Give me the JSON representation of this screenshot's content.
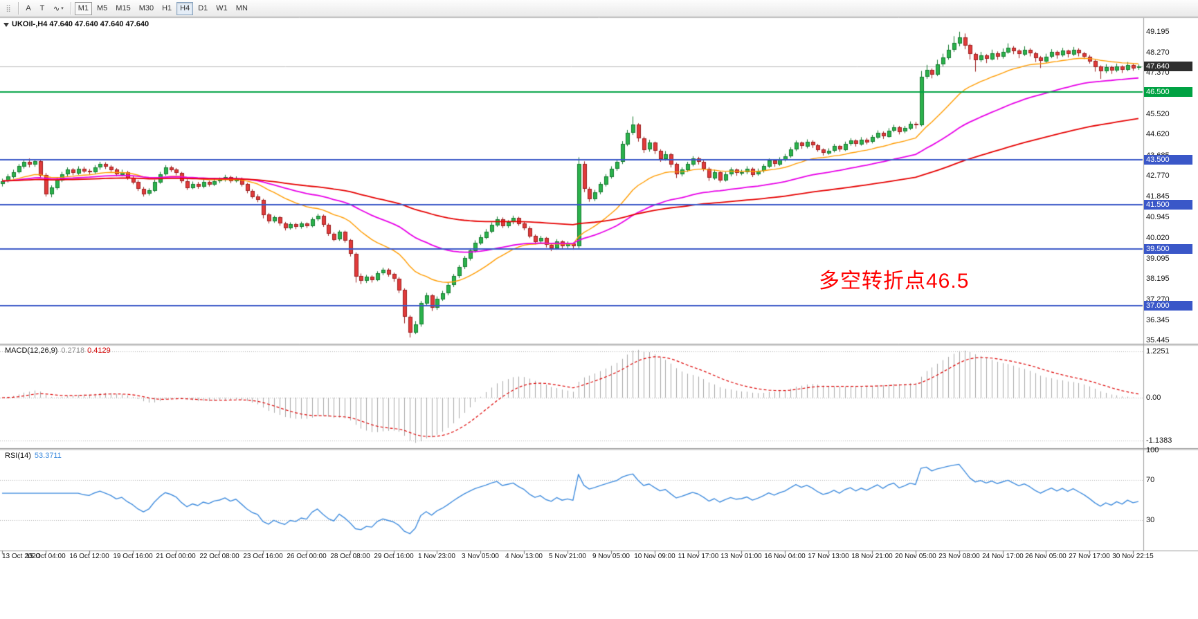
{
  "toolbar": {
    "tools": [
      {
        "name": "toolbar-grip-icon",
        "glyph": "⣿"
      },
      {
        "name": "cursor-tool-button",
        "glyph": "A"
      },
      {
        "name": "text-tool-button",
        "glyph": "T"
      },
      {
        "name": "line-studies-tool-button",
        "glyph": "∿",
        "caret": "▾"
      }
    ],
    "timeframes": [
      {
        "label": "M1",
        "style": "outlined"
      },
      {
        "label": "M5"
      },
      {
        "label": "M15"
      },
      {
        "label": "M30"
      },
      {
        "label": "H1"
      },
      {
        "label": "H4",
        "style": "active"
      },
      {
        "label": "D1"
      },
      {
        "label": "W1"
      },
      {
        "label": "MN"
      }
    ]
  },
  "chart": {
    "symbol_line": "UKOil-,H4 47.640 47.640 47.640 47.640",
    "annotation": {
      "text": "多空转折点46.5",
      "color": "#FF0000"
    },
    "current_price": {
      "label": "47.640",
      "value": 47.64,
      "badge_bg": "#2E2E2E"
    },
    "hlines": [
      {
        "label": "46.500",
        "value": 46.5,
        "color": "#00A243"
      },
      {
        "label": "43.500",
        "value": 43.5,
        "color": "#3A57C8"
      },
      {
        "label": "41.500",
        "value": 41.5,
        "color": "#3A57C8"
      },
      {
        "label": "39.500",
        "value": 39.5,
        "color": "#3A57C8"
      },
      {
        "label": "37.000",
        "value": 37.0,
        "color": "#3A57C8"
      }
    ],
    "colors": {
      "up_fill": "#2BB24C",
      "up_border": "#137A2E",
      "down_fill": "#E13B3B",
      "down_border": "#9C1E1E",
      "macd_hist": "#A9A9A9",
      "macd_signal": "#DE0000",
      "rsi_line": "#3F8CDE",
      "price_line": "#BDBDBD"
    }
  },
  "chart_data": {
    "type": "candlestick",
    "symbol": "UKOil-",
    "timeframe": "H4",
    "x_label_every": 8,
    "x_labels": [
      "13 Oct 2020",
      "15 Oct 04:00",
      "16 Oct 12:00",
      "19 Oct 16:00",
      "21 Oct 00:00",
      "22 Oct 08:00",
      "23 Oct 16:00",
      "26 Oct 00:00",
      "28 Oct 08:00",
      "29 Oct 16:00",
      "1 Nov 23:00",
      "3 Nov 05:00",
      "4 Nov 13:00",
      "5 Nov 21:00",
      "9 Nov 05:00",
      "10 Nov 09:00",
      "11 Nov 17:00",
      "13 Nov 01:00",
      "16 Nov 04:00",
      "17 Nov 13:00",
      "18 Nov 21:00",
      "20 Nov 05:00",
      "23 Nov 08:00",
      "24 Nov 17:00",
      "26 Nov 05:00",
      "27 Nov 17:00",
      "30 Nov 22:15"
    ],
    "price_axis_ticks": [
      "49.195",
      "48.270",
      "47.370",
      "45.520",
      "44.620",
      "43.685",
      "42.770",
      "41.845",
      "40.945",
      "40.020",
      "39.095",
      "38.195",
      "37.270",
      "36.345",
      "35.445"
    ],
    "moving_averages": [
      {
        "name": "fast-ma",
        "period": 21,
        "color": "#FF9C00",
        "width": 1.4
      },
      {
        "name": "medium-ma",
        "period": 50,
        "color": "#E800E8",
        "width": 1.8
      },
      {
        "name": "slow-ma",
        "period": 120,
        "color": "#E60000",
        "width": 1.8
      }
    ],
    "macd": {
      "label": "MACD(12,26,9)",
      "params": [
        12,
        26,
        9
      ],
      "main_value": "0.2718",
      "signal_value": "0.4129",
      "scale_top": "1.2251",
      "scale_zero": "0.00",
      "scale_bottom": "-1.1383"
    },
    "rsi": {
      "label": "RSI(14)",
      "period": 14,
      "value": "53.3711",
      "levels": [
        "100",
        "70",
        "30"
      ],
      "guide_levels": [
        70,
        30
      ]
    },
    "candles": [
      [
        42.45,
        42.65,
        42.3,
        42.55
      ],
      [
        42.55,
        42.85,
        42.48,
        42.75
      ],
      [
        42.75,
        43.05,
        42.65,
        42.95
      ],
      [
        42.95,
        43.3,
        42.88,
        43.2
      ],
      [
        43.2,
        43.52,
        43.1,
        43.4
      ],
      [
        43.4,
        43.55,
        43.15,
        43.28
      ],
      [
        43.28,
        43.5,
        43.18,
        43.42
      ],
      [
        43.42,
        43.48,
        42.7,
        42.8
      ],
      [
        42.8,
        42.9,
        41.85,
        41.95
      ],
      [
        41.95,
        42.35,
        41.82,
        42.25
      ],
      [
        42.25,
        42.7,
        42.15,
        42.6
      ],
      [
        42.6,
        42.95,
        42.5,
        42.85
      ],
      [
        42.85,
        43.15,
        42.75,
        43.05
      ],
      [
        43.05,
        43.12,
        42.8,
        42.9
      ],
      [
        42.9,
        43.2,
        42.82,
        43.1
      ],
      [
        43.1,
        43.18,
        42.9,
        43.0
      ],
      [
        43.0,
        43.08,
        42.85,
        42.95
      ],
      [
        42.95,
        43.25,
        42.88,
        43.15
      ],
      [
        43.15,
        43.4,
        43.05,
        43.3
      ],
      [
        43.3,
        43.38,
        43.08,
        43.18
      ],
      [
        43.18,
        43.25,
        42.95,
        43.05
      ],
      [
        43.05,
        43.12,
        42.75,
        42.85
      ],
      [
        42.85,
        43.05,
        42.75,
        42.95
      ],
      [
        42.95,
        43.0,
        42.6,
        42.7
      ],
      [
        42.7,
        42.78,
        42.4,
        42.5
      ],
      [
        42.5,
        42.58,
        42.1,
        42.2
      ],
      [
        42.2,
        42.28,
        41.85,
        41.98
      ],
      [
        41.98,
        42.22,
        41.9,
        42.12
      ],
      [
        42.12,
        42.6,
        42.05,
        42.5
      ],
      [
        42.5,
        42.95,
        42.42,
        42.85
      ],
      [
        42.85,
        43.25,
        42.78,
        43.15
      ],
      [
        43.15,
        43.22,
        42.95,
        43.05
      ],
      [
        43.05,
        43.12,
        42.8,
        42.9
      ],
      [
        42.9,
        42.95,
        42.45,
        42.55
      ],
      [
        42.55,
        42.62,
        42.15,
        42.25
      ],
      [
        42.25,
        42.52,
        42.18,
        42.42
      ],
      [
        42.42,
        42.5,
        42.2,
        42.3
      ],
      [
        42.3,
        42.6,
        42.22,
        42.5
      ],
      [
        42.5,
        42.56,
        42.3,
        42.4
      ],
      [
        42.4,
        42.65,
        42.32,
        42.55
      ],
      [
        42.55,
        42.7,
        42.45,
        42.6
      ],
      [
        42.6,
        42.82,
        42.52,
        42.72
      ],
      [
        42.72,
        42.78,
        42.45,
        42.55
      ],
      [
        42.55,
        42.75,
        42.48,
        42.65
      ],
      [
        42.65,
        42.7,
        42.3,
        42.4
      ],
      [
        42.4,
        42.46,
        42.0,
        42.1
      ],
      [
        42.1,
        42.18,
        41.76,
        41.85
      ],
      [
        41.85,
        41.95,
        41.6,
        41.7
      ],
      [
        41.7,
        41.75,
        40.88,
        41.05
      ],
      [
        41.05,
        41.12,
        40.65,
        40.75
      ],
      [
        40.75,
        41.0,
        40.68,
        40.92
      ],
      [
        40.92,
        40.98,
        40.55,
        40.65
      ],
      [
        40.65,
        40.72,
        40.34,
        40.45
      ],
      [
        40.45,
        40.7,
        40.38,
        40.62
      ],
      [
        40.62,
        40.68,
        40.4,
        40.5
      ],
      [
        40.5,
        40.73,
        40.42,
        40.65
      ],
      [
        40.65,
        40.7,
        40.45,
        40.55
      ],
      [
        40.55,
        40.92,
        40.48,
        40.85
      ],
      [
        40.85,
        41.08,
        40.76,
        41.0
      ],
      [
        41.0,
        41.05,
        40.5,
        40.6
      ],
      [
        40.6,
        40.66,
        40.1,
        40.2
      ],
      [
        40.2,
        40.26,
        39.86,
        39.95
      ],
      [
        39.95,
        40.35,
        39.88,
        40.28
      ],
      [
        40.28,
        40.33,
        39.8,
        39.9
      ],
      [
        39.9,
        39.96,
        39.18,
        39.3
      ],
      [
        39.3,
        39.36,
        38.02,
        38.3
      ],
      [
        38.3,
        38.42,
        37.95,
        38.1
      ],
      [
        38.1,
        38.36,
        38.0,
        38.28
      ],
      [
        38.28,
        38.34,
        38.02,
        38.15
      ],
      [
        38.15,
        38.52,
        38.08,
        38.45
      ],
      [
        38.45,
        38.68,
        38.35,
        38.6
      ],
      [
        38.6,
        38.65,
        38.28,
        38.4
      ],
      [
        38.4,
        38.46,
        38.05,
        38.2
      ],
      [
        38.2,
        38.26,
        37.55,
        37.7
      ],
      [
        37.7,
        37.76,
        36.2,
        36.5
      ],
      [
        36.5,
        36.56,
        35.57,
        35.8
      ],
      [
        35.8,
        36.3,
        35.72,
        36.15
      ],
      [
        36.15,
        37.2,
        36.05,
        37.1
      ],
      [
        37.1,
        37.56,
        37.0,
        37.45
      ],
      [
        37.45,
        37.5,
        36.75,
        36.9
      ],
      [
        36.9,
        37.4,
        36.8,
        37.3
      ],
      [
        37.3,
        37.65,
        37.2,
        37.55
      ],
      [
        37.55,
        38.0,
        37.45,
        37.9
      ],
      [
        37.9,
        38.4,
        37.82,
        38.3
      ],
      [
        38.3,
        38.8,
        38.22,
        38.7
      ],
      [
        38.7,
        39.2,
        38.62,
        39.1
      ],
      [
        39.1,
        39.55,
        39.0,
        39.45
      ],
      [
        39.45,
        39.9,
        39.35,
        39.8
      ],
      [
        39.8,
        40.15,
        39.7,
        40.05
      ],
      [
        40.05,
        40.4,
        39.95,
        40.3
      ],
      [
        40.3,
        40.7,
        40.22,
        40.6
      ],
      [
        40.6,
        40.96,
        40.5,
        40.85
      ],
      [
        40.85,
        40.92,
        40.45,
        40.55
      ],
      [
        40.55,
        40.8,
        40.45,
        40.72
      ],
      [
        40.72,
        41.0,
        40.62,
        40.9
      ],
      [
        40.9,
        40.95,
        40.55,
        40.65
      ],
      [
        40.65,
        40.72,
        40.35,
        40.45
      ],
      [
        40.45,
        40.52,
        40.0,
        40.1
      ],
      [
        40.1,
        40.16,
        39.72,
        39.85
      ],
      [
        39.85,
        40.1,
        39.75,
        40.0
      ],
      [
        40.0,
        40.05,
        39.58,
        39.7
      ],
      [
        39.7,
        39.76,
        39.42,
        39.55
      ],
      [
        39.55,
        39.95,
        39.48,
        39.85
      ],
      [
        39.85,
        39.9,
        39.52,
        39.65
      ],
      [
        39.65,
        39.85,
        39.55,
        39.75
      ],
      [
        39.75,
        39.8,
        39.48,
        39.65
      ],
      [
        39.65,
        43.6,
        39.55,
        43.3
      ],
      [
        43.3,
        43.42,
        42.05,
        42.2
      ],
      [
        42.2,
        42.28,
        41.62,
        41.75
      ],
      [
        41.75,
        42.15,
        41.65,
        42.05
      ],
      [
        42.05,
        42.5,
        41.95,
        42.4
      ],
      [
        42.4,
        42.85,
        42.3,
        42.75
      ],
      [
        42.75,
        43.2,
        42.65,
        43.1
      ],
      [
        43.1,
        43.5,
        43.0,
        43.4
      ],
      [
        43.4,
        44.32,
        43.3,
        44.2
      ],
      [
        44.2,
        44.82,
        44.1,
        44.7
      ],
      [
        44.7,
        45.42,
        44.6,
        45.05
      ],
      [
        45.05,
        45.12,
        44.3,
        44.45
      ],
      [
        44.45,
        44.52,
        43.8,
        43.95
      ],
      [
        43.95,
        44.38,
        43.85,
        44.25
      ],
      [
        44.25,
        44.3,
        43.75,
        43.9
      ],
      [
        43.9,
        43.96,
        43.4,
        43.55
      ],
      [
        43.55,
        43.88,
        43.45,
        43.75
      ],
      [
        43.75,
        43.8,
        43.15,
        43.3
      ],
      [
        43.3,
        43.36,
        42.68,
        42.85
      ],
      [
        42.85,
        43.15,
        42.75,
        43.05
      ],
      [
        43.05,
        43.4,
        42.95,
        43.3
      ],
      [
        43.3,
        43.65,
        43.2,
        43.55
      ],
      [
        43.55,
        43.62,
        43.28,
        43.4
      ],
      [
        43.4,
        43.46,
        42.98,
        43.1
      ],
      [
        43.1,
        43.16,
        42.55,
        42.7
      ],
      [
        42.7,
        43.05,
        42.6,
        42.95
      ],
      [
        42.95,
        43.0,
        42.48,
        42.6
      ],
      [
        42.6,
        42.95,
        42.52,
        42.85
      ],
      [
        42.85,
        43.15,
        42.75,
        43.05
      ],
      [
        43.05,
        43.1,
        42.78,
        42.9
      ],
      [
        42.9,
        43.05,
        42.8,
        42.95
      ],
      [
        42.95,
        43.2,
        42.85,
        43.1
      ],
      [
        43.1,
        43.15,
        42.72,
        42.85
      ],
      [
        42.85,
        43.1,
        42.78,
        43.0
      ],
      [
        43.0,
        43.3,
        42.92,
        43.2
      ],
      [
        43.2,
        43.55,
        43.12,
        43.45
      ],
      [
        43.45,
        43.5,
        43.18,
        43.3
      ],
      [
        43.3,
        43.6,
        43.22,
        43.5
      ],
      [
        43.5,
        43.75,
        43.42,
        43.65
      ],
      [
        43.65,
        44.05,
        43.58,
        43.95
      ],
      [
        43.95,
        44.35,
        43.88,
        44.25
      ],
      [
        44.25,
        44.3,
        43.98,
        44.1
      ],
      [
        44.1,
        44.4,
        44.0,
        44.3
      ],
      [
        44.3,
        44.36,
        44.02,
        44.15
      ],
      [
        44.15,
        44.2,
        43.85,
        43.95
      ],
      [
        43.95,
        44.0,
        43.68,
        43.8
      ],
      [
        43.8,
        44.0,
        43.72,
        43.9
      ],
      [
        43.9,
        44.2,
        43.82,
        44.1
      ],
      [
        44.1,
        44.15,
        43.85,
        43.95
      ],
      [
        43.95,
        44.3,
        43.88,
        44.2
      ],
      [
        44.2,
        44.45,
        44.12,
        44.35
      ],
      [
        44.35,
        44.4,
        44.08,
        44.2
      ],
      [
        44.2,
        44.5,
        44.12,
        44.4
      ],
      [
        44.4,
        44.46,
        44.18,
        44.3
      ],
      [
        44.3,
        44.6,
        44.22,
        44.5
      ],
      [
        44.5,
        44.8,
        44.42,
        44.7
      ],
      [
        44.7,
        44.76,
        44.42,
        44.55
      ],
      [
        44.55,
        44.9,
        44.48,
        44.8
      ],
      [
        44.8,
        45.05,
        44.72,
        44.95
      ],
      [
        44.95,
        45.0,
        44.62,
        44.75
      ],
      [
        44.75,
        45.0,
        44.68,
        44.9
      ],
      [
        44.9,
        45.2,
        44.82,
        45.1
      ],
      [
        45.1,
        45.18,
        44.88,
        45.05
      ],
      [
        45.05,
        47.45,
        44.98,
        47.2
      ],
      [
        47.2,
        47.72,
        47.1,
        47.5
      ],
      [
        47.5,
        47.56,
        47.12,
        47.3
      ],
      [
        47.3,
        47.95,
        47.22,
        47.75
      ],
      [
        47.75,
        48.22,
        47.65,
        48.05
      ],
      [
        48.05,
        48.62,
        47.95,
        48.4
      ],
      [
        48.4,
        49.0,
        48.3,
        48.7
      ],
      [
        48.7,
        49.2,
        48.55,
        48.95
      ],
      [
        48.95,
        49.12,
        48.42,
        48.6
      ],
      [
        48.6,
        48.66,
        47.96,
        48.2
      ],
      [
        48.2,
        48.26,
        47.42,
        47.95
      ],
      [
        47.95,
        48.3,
        47.85,
        48.15
      ],
      [
        48.15,
        48.2,
        47.8,
        48.0
      ],
      [
        48.0,
        48.4,
        47.92,
        48.25
      ],
      [
        48.25,
        48.32,
        47.95,
        48.1
      ],
      [
        48.1,
        48.45,
        48.0,
        48.3
      ],
      [
        48.3,
        48.68,
        48.22,
        48.5
      ],
      [
        48.5,
        48.56,
        48.2,
        48.35
      ],
      [
        48.35,
        48.42,
        48.02,
        48.2
      ],
      [
        48.2,
        48.55,
        48.12,
        48.4
      ],
      [
        48.4,
        48.46,
        48.1,
        48.25
      ],
      [
        48.25,
        48.3,
        47.85,
        48.05
      ],
      [
        48.05,
        48.12,
        47.58,
        47.9
      ],
      [
        47.9,
        48.22,
        47.8,
        48.1
      ],
      [
        48.1,
        48.42,
        48.02,
        48.3
      ],
      [
        48.3,
        48.36,
        48.0,
        48.15
      ],
      [
        48.15,
        48.48,
        48.08,
        48.35
      ],
      [
        48.35,
        48.4,
        48.05,
        48.2
      ],
      [
        48.2,
        48.52,
        48.12,
        48.4
      ],
      [
        48.4,
        48.46,
        48.1,
        48.25
      ],
      [
        48.25,
        48.3,
        47.98,
        48.1
      ],
      [
        48.1,
        48.16,
        47.78,
        47.9
      ],
      [
        47.9,
        47.95,
        47.42,
        47.65
      ],
      [
        47.65,
        47.7,
        47.1,
        47.45
      ],
      [
        47.45,
        47.75,
        47.35,
        47.62
      ],
      [
        47.62,
        47.68,
        47.32,
        47.48
      ],
      [
        47.48,
        47.78,
        47.4,
        47.66
      ],
      [
        47.66,
        47.7,
        47.36,
        47.52
      ],
      [
        47.52,
        47.85,
        47.44,
        47.72
      ],
      [
        47.72,
        47.78,
        47.46,
        47.58
      ],
      [
        47.58,
        47.74,
        47.5,
        47.64
      ]
    ]
  }
}
